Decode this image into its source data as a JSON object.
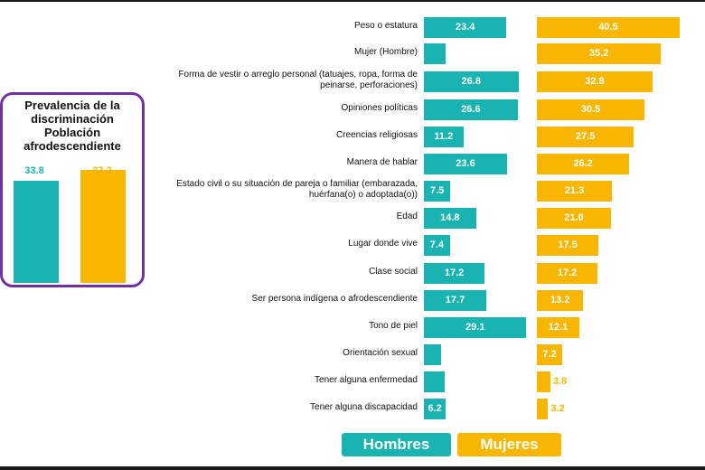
{
  "colors": {
    "hombres": "#19b3b1",
    "mujeres": "#f8b600",
    "box_border": "#7030a0"
  },
  "prevalence": {
    "title": "Prevalencia de la discriminación Población afrodescendiente",
    "hombres": 33.8,
    "mujeres": 37.2,
    "hombres_label": "33.8",
    "mujeres_label": "37.2"
  },
  "legend": {
    "hombres": "Hombres",
    "mujeres": "Mujeres"
  },
  "chart_data": {
    "type": "bar",
    "categories": [
      "Peso o estatura",
      "Mujer (Hombre)",
      "Forma de vestir o arreglo personal (tatuajes, ropa, forma de peinarse, perforaciones)",
      "Opiniones políticas",
      "Creencias religiosas",
      "Manera de hablar",
      "Estado civil o su situación de pareja o familiar (embarazada, huérfana(o) o adoptada(o))",
      "Edad",
      "Lugar donde vive",
      "Clase social",
      "Ser persona indígena o afrodescendiente",
      "Tono de piel",
      "Orientación sexual",
      "Tener alguna enfermedad",
      "Tener alguna discapacidad"
    ],
    "series": [
      {
        "name": "Hombres",
        "values": [
          23.4,
          6.1,
          26.8,
          26.6,
          11.2,
          23.6,
          7.5,
          14.8,
          7.4,
          17.2,
          17.7,
          29.1,
          4.8,
          6.0,
          6.2
        ],
        "labels": [
          "23.4",
          "6.1",
          "26.8",
          "26.6",
          "11.2",
          "23.6",
          "7.5",
          "14.8",
          "7.4",
          "17.2",
          "17.7",
          "29.1",
          "4.8",
          "6.0",
          "6.2"
        ]
      },
      {
        "name": "Mujeres",
        "values": [
          40.5,
          35.2,
          32.8,
          30.5,
          27.5,
          26.2,
          21.3,
          21.0,
          17.5,
          17.2,
          13.2,
          12.1,
          7.2,
          3.8,
          3.2
        ],
        "labels": [
          "40.5",
          "35.2",
          "32.8",
          "30.5",
          "27.5",
          "26.2",
          "21.3",
          "21.0",
          "17.5",
          "17.2",
          "13.2",
          "12.1",
          "7.2",
          "3.8",
          "3.2"
        ]
      }
    ]
  }
}
